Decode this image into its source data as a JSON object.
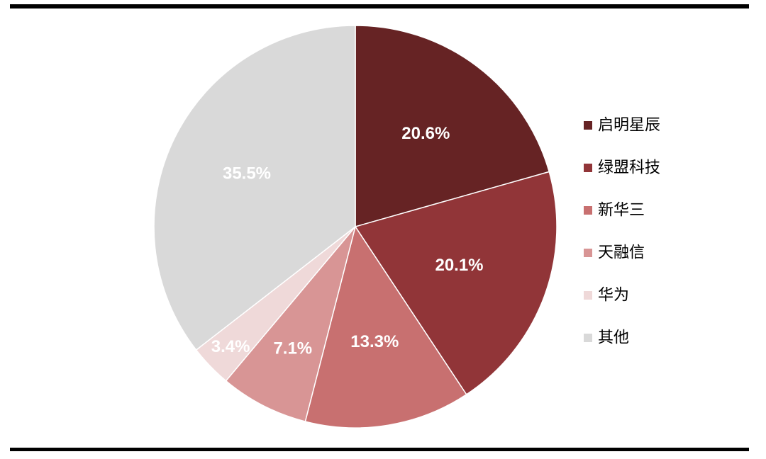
{
  "chart_data": {
    "type": "pie",
    "title": "",
    "legend_position": "right",
    "slices": [
      {
        "name": "启明星辰",
        "value": 20.6,
        "label": "20.6%",
        "color": "#662324"
      },
      {
        "name": "绿盟科技",
        "value": 20.1,
        "label": "20.1%",
        "color": "#913538"
      },
      {
        "name": "新华三",
        "value": 13.3,
        "label": "13.3%",
        "color": "#C87070"
      },
      {
        "name": "天融信",
        "value": 7.1,
        "label": "7.1%",
        "color": "#D89595"
      },
      {
        "name": "华为",
        "value": 3.4,
        "label": "3.4%",
        "color": "#EFD9D9"
      },
      {
        "name": "其他",
        "value": 35.5,
        "label": "35.5%",
        "color": "#D9D9D9"
      }
    ]
  }
}
